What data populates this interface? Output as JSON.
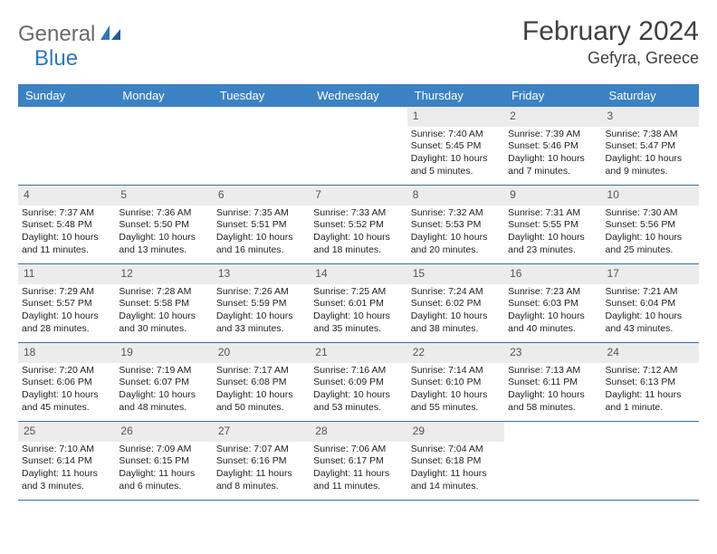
{
  "logo": {
    "word1": "General",
    "word2": "Blue"
  },
  "title": "February 2024",
  "location": "Gefyra, Greece",
  "colors": {
    "header_bg": "#3b82c4",
    "header_text": "#ffffff",
    "daynum_bg": "#ececec",
    "border": "#3b6fa3",
    "logo_gray": "#6a6a6a",
    "logo_blue": "#2f78bd"
  },
  "day_names": [
    "Sunday",
    "Monday",
    "Tuesday",
    "Wednesday",
    "Thursday",
    "Friday",
    "Saturday"
  ],
  "weeks": [
    [
      {
        "empty": true
      },
      {
        "empty": true
      },
      {
        "empty": true
      },
      {
        "empty": true
      },
      {
        "n": "1",
        "sunrise": "7:40 AM",
        "sunset": "5:45 PM",
        "daylight": "10 hours and 5 minutes."
      },
      {
        "n": "2",
        "sunrise": "7:39 AM",
        "sunset": "5:46 PM",
        "daylight": "10 hours and 7 minutes."
      },
      {
        "n": "3",
        "sunrise": "7:38 AM",
        "sunset": "5:47 PM",
        "daylight": "10 hours and 9 minutes."
      }
    ],
    [
      {
        "n": "4",
        "sunrise": "7:37 AM",
        "sunset": "5:48 PM",
        "daylight": "10 hours and 11 minutes."
      },
      {
        "n": "5",
        "sunrise": "7:36 AM",
        "sunset": "5:50 PM",
        "daylight": "10 hours and 13 minutes."
      },
      {
        "n": "6",
        "sunrise": "7:35 AM",
        "sunset": "5:51 PM",
        "daylight": "10 hours and 16 minutes."
      },
      {
        "n": "7",
        "sunrise": "7:33 AM",
        "sunset": "5:52 PM",
        "daylight": "10 hours and 18 minutes."
      },
      {
        "n": "8",
        "sunrise": "7:32 AM",
        "sunset": "5:53 PM",
        "daylight": "10 hours and 20 minutes."
      },
      {
        "n": "9",
        "sunrise": "7:31 AM",
        "sunset": "5:55 PM",
        "daylight": "10 hours and 23 minutes."
      },
      {
        "n": "10",
        "sunrise": "7:30 AM",
        "sunset": "5:56 PM",
        "daylight": "10 hours and 25 minutes."
      }
    ],
    [
      {
        "n": "11",
        "sunrise": "7:29 AM",
        "sunset": "5:57 PM",
        "daylight": "10 hours and 28 minutes."
      },
      {
        "n": "12",
        "sunrise": "7:28 AM",
        "sunset": "5:58 PM",
        "daylight": "10 hours and 30 minutes."
      },
      {
        "n": "13",
        "sunrise": "7:26 AM",
        "sunset": "5:59 PM",
        "daylight": "10 hours and 33 minutes."
      },
      {
        "n": "14",
        "sunrise": "7:25 AM",
        "sunset": "6:01 PM",
        "daylight": "10 hours and 35 minutes."
      },
      {
        "n": "15",
        "sunrise": "7:24 AM",
        "sunset": "6:02 PM",
        "daylight": "10 hours and 38 minutes."
      },
      {
        "n": "16",
        "sunrise": "7:23 AM",
        "sunset": "6:03 PM",
        "daylight": "10 hours and 40 minutes."
      },
      {
        "n": "17",
        "sunrise": "7:21 AM",
        "sunset": "6:04 PM",
        "daylight": "10 hours and 43 minutes."
      }
    ],
    [
      {
        "n": "18",
        "sunrise": "7:20 AM",
        "sunset": "6:06 PM",
        "daylight": "10 hours and 45 minutes."
      },
      {
        "n": "19",
        "sunrise": "7:19 AM",
        "sunset": "6:07 PM",
        "daylight": "10 hours and 48 minutes."
      },
      {
        "n": "20",
        "sunrise": "7:17 AM",
        "sunset": "6:08 PM",
        "daylight": "10 hours and 50 minutes."
      },
      {
        "n": "21",
        "sunrise": "7:16 AM",
        "sunset": "6:09 PM",
        "daylight": "10 hours and 53 minutes."
      },
      {
        "n": "22",
        "sunrise": "7:14 AM",
        "sunset": "6:10 PM",
        "daylight": "10 hours and 55 minutes."
      },
      {
        "n": "23",
        "sunrise": "7:13 AM",
        "sunset": "6:11 PM",
        "daylight": "10 hours and 58 minutes."
      },
      {
        "n": "24",
        "sunrise": "7:12 AM",
        "sunset": "6:13 PM",
        "daylight": "11 hours and 1 minute."
      }
    ],
    [
      {
        "n": "25",
        "sunrise": "7:10 AM",
        "sunset": "6:14 PM",
        "daylight": "11 hours and 3 minutes."
      },
      {
        "n": "26",
        "sunrise": "7:09 AM",
        "sunset": "6:15 PM",
        "daylight": "11 hours and 6 minutes."
      },
      {
        "n": "27",
        "sunrise": "7:07 AM",
        "sunset": "6:16 PM",
        "daylight": "11 hours and 8 minutes."
      },
      {
        "n": "28",
        "sunrise": "7:06 AM",
        "sunset": "6:17 PM",
        "daylight": "11 hours and 11 minutes."
      },
      {
        "n": "29",
        "sunrise": "7:04 AM",
        "sunset": "6:18 PM",
        "daylight": "11 hours and 14 minutes."
      },
      {
        "empty": true
      },
      {
        "empty": true
      }
    ]
  ],
  "labels": {
    "sunrise": "Sunrise: ",
    "sunset": "Sunset: ",
    "daylight": "Daylight: "
  }
}
